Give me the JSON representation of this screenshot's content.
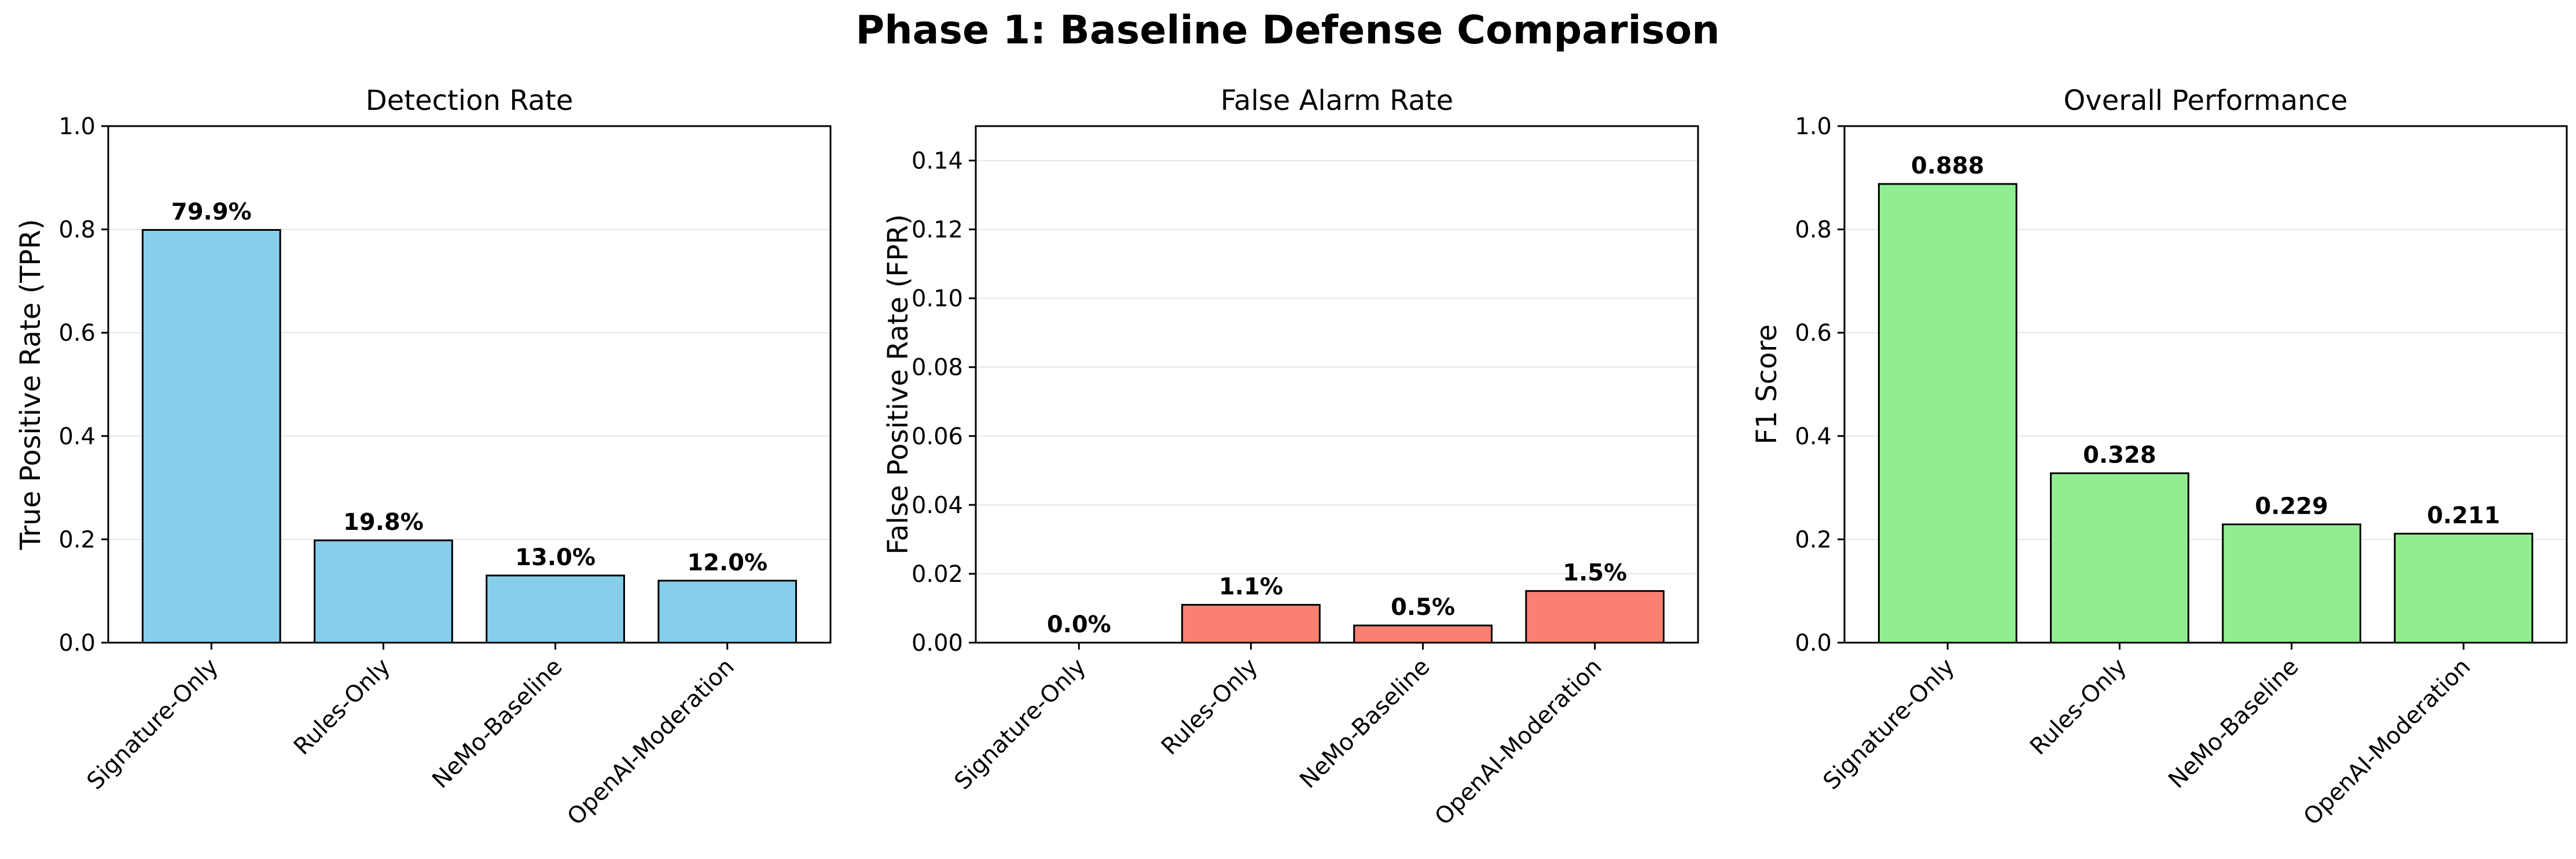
{
  "title": "Phase 1: Baseline Defense Comparison",
  "chart_data": [
    {
      "type": "bar",
      "title": "Detection Rate",
      "xlabel": "",
      "ylabel": "True Positive Rate (TPR)",
      "categories": [
        "Signature-Only",
        "Rules-Only",
        "NeMo-Baseline",
        "OpenAI-Moderation"
      ],
      "values": [
        0.799,
        0.198,
        0.13,
        0.12
      ],
      "data_labels": [
        "79.9%",
        "19.8%",
        "13.0%",
        "12.0%"
      ],
      "ylim": [
        0,
        1.0
      ],
      "yticks": [
        0.0,
        0.2,
        0.4,
        0.6,
        0.8,
        1.0
      ],
      "ytick_labels": [
        "0.0",
        "0.2",
        "0.4",
        "0.6",
        "0.8",
        "1.0"
      ],
      "grid": "horizontal",
      "bar_color": "#87CEEB"
    },
    {
      "type": "bar",
      "title": "False Alarm Rate",
      "xlabel": "",
      "ylabel": "False Positive Rate (FPR)",
      "categories": [
        "Signature-Only",
        "Rules-Only",
        "NeMo-Baseline",
        "OpenAI-Moderation"
      ],
      "values": [
        0.0,
        0.011,
        0.005,
        0.015
      ],
      "data_labels": [
        "0.0%",
        "1.1%",
        "0.5%",
        "1.5%"
      ],
      "ylim": [
        0,
        0.15
      ],
      "yticks": [
        0.0,
        0.02,
        0.04,
        0.06,
        0.08,
        0.1,
        0.12,
        0.14
      ],
      "ytick_labels": [
        "0.00",
        "0.02",
        "0.04",
        "0.06",
        "0.08",
        "0.10",
        "0.12",
        "0.14"
      ],
      "grid": "horizontal",
      "bar_color": "#FA8072"
    },
    {
      "type": "bar",
      "title": "Overall Performance",
      "xlabel": "",
      "ylabel": "F1 Score",
      "categories": [
        "Signature-Only",
        "Rules-Only",
        "NeMo-Baseline",
        "OpenAI-Moderation"
      ],
      "values": [
        0.888,
        0.328,
        0.229,
        0.211
      ],
      "data_labels": [
        "0.888",
        "0.328",
        "0.229",
        "0.211"
      ],
      "ylim": [
        0,
        1.0
      ],
      "yticks": [
        0.0,
        0.2,
        0.4,
        0.6,
        0.8,
        1.0
      ],
      "ytick_labels": [
        "0.0",
        "0.2",
        "0.4",
        "0.6",
        "0.8",
        "1.0"
      ],
      "grid": "horizontal",
      "bar_color": "#90EE90"
    }
  ]
}
